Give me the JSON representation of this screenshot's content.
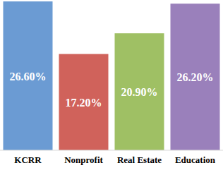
{
  "chart_data": {
    "type": "bar",
    "categories": [
      "KCRR",
      "Nonprofit",
      "Real Estate",
      "Education"
    ],
    "values": [
      26.6,
      17.2,
      20.9,
      26.2
    ],
    "value_labels": [
      "26.60%",
      "17.20%",
      "20.90%",
      "26.20%"
    ],
    "colors": [
      "#6b9bd3",
      "#d0625b",
      "#9fc064",
      "#9a80bb"
    ],
    "ylim": [
      0,
      26.6
    ],
    "tick_labels": false,
    "data_labels": true
  }
}
